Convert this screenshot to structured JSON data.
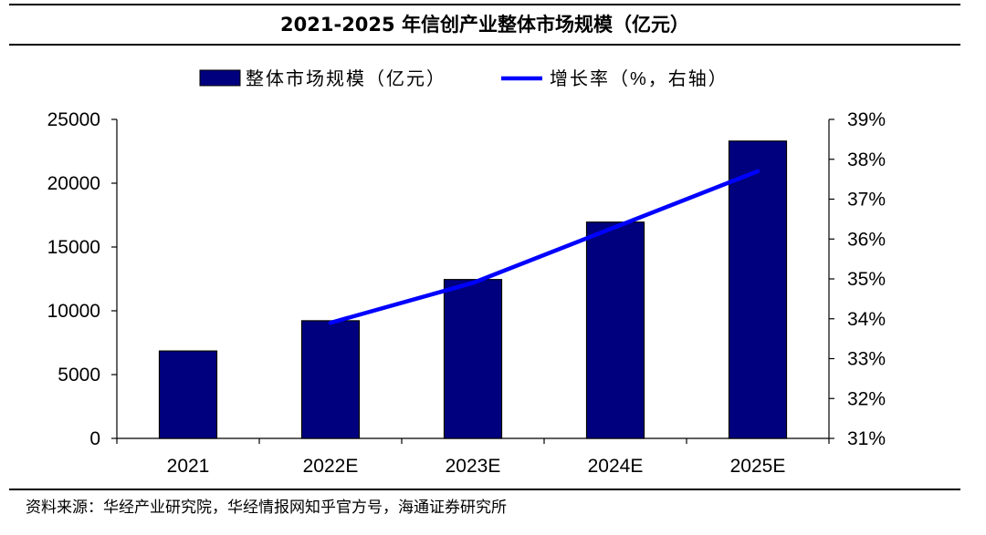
{
  "chart_data": {
    "type": "bar",
    "title": "2021-2025 年信创产业整体市场规模（亿元）",
    "categories": [
      "2021",
      "2022E",
      "2023E",
      "2024E",
      "2025E"
    ],
    "series": [
      {
        "name": "整体市场规模（亿元）",
        "type": "bar",
        "axis": "left",
        "values": [
          6850,
          9220,
          12450,
          16950,
          23300
        ],
        "color": "#00007f"
      },
      {
        "name": "增长率（%，右轴）",
        "type": "line",
        "axis": "right",
        "values": [
          null,
          33.9,
          34.9,
          36.3,
          37.7
        ],
        "color": "#0000ff"
      }
    ],
    "y_left": {
      "min": 0,
      "max": 25000,
      "ticks": [
        "0",
        "5000",
        "10000",
        "15000",
        "20000",
        "25000"
      ]
    },
    "y_right": {
      "min": 31,
      "max": 39,
      "ticks": [
        "31%",
        "32%",
        "33%",
        "34%",
        "35%",
        "36%",
        "37%",
        "38%",
        "39%"
      ]
    },
    "grid": false,
    "legend_position": "top"
  },
  "source": "资料来源：华经产业研究院，华经情报网知乎官方号，海通证券研究所"
}
